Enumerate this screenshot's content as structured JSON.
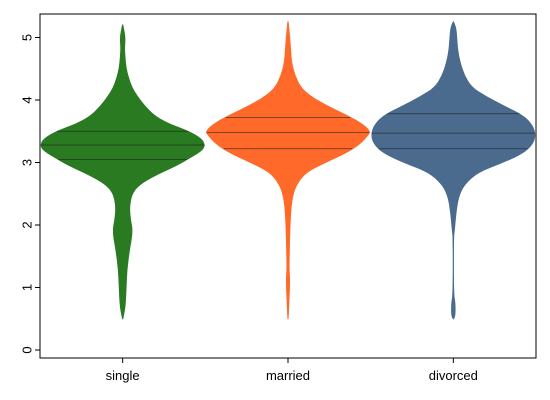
{
  "chart_data": {
    "type": "violin",
    "title": "",
    "xlabel": "",
    "ylabel": "",
    "ylim": [
      0,
      5.3
    ],
    "yticks": [
      0,
      1,
      2,
      3,
      4,
      5
    ],
    "categories": [
      "single",
      "married",
      "divorced"
    ],
    "grid": false,
    "legend": "none",
    "series": [
      {
        "category": "single",
        "color": "#2a7a22",
        "range": [
          0.5,
          5.2
        ],
        "quartiles": [
          3.05,
          3.28,
          3.5
        ],
        "density": [
          [
            0.5,
            0.0
          ],
          [
            0.7,
            0.03
          ],
          [
            1.0,
            0.04
          ],
          [
            1.3,
            0.05
          ],
          [
            1.6,
            0.08
          ],
          [
            1.9,
            0.12
          ],
          [
            2.1,
            0.09
          ],
          [
            2.3,
            0.08
          ],
          [
            2.5,
            0.11
          ],
          [
            2.65,
            0.2
          ],
          [
            2.8,
            0.4
          ],
          [
            2.95,
            0.65
          ],
          [
            3.1,
            0.85
          ],
          [
            3.2,
            0.97
          ],
          [
            3.28,
            1.0
          ],
          [
            3.38,
            0.96
          ],
          [
            3.5,
            0.8
          ],
          [
            3.62,
            0.55
          ],
          [
            3.75,
            0.38
          ],
          [
            3.9,
            0.27
          ],
          [
            4.05,
            0.18
          ],
          [
            4.2,
            0.11
          ],
          [
            4.35,
            0.07
          ],
          [
            4.5,
            0.04
          ],
          [
            4.7,
            0.025
          ],
          [
            4.85,
            0.02
          ],
          [
            5.0,
            0.03
          ],
          [
            5.2,
            0.0
          ]
        ]
      },
      {
        "category": "married",
        "color": "#ff6a2a",
        "range": [
          0.5,
          5.25
        ],
        "quartiles": [
          3.22,
          3.48,
          3.72
        ],
        "density": [
          [
            0.5,
            0.0
          ],
          [
            0.8,
            0.01
          ],
          [
            1.1,
            0.02
          ],
          [
            1.3,
            0.01
          ],
          [
            1.6,
            0.015
          ],
          [
            1.9,
            0.02
          ],
          [
            2.2,
            0.03
          ],
          [
            2.45,
            0.05
          ],
          [
            2.65,
            0.1
          ],
          [
            2.85,
            0.22
          ],
          [
            3.0,
            0.45
          ],
          [
            3.15,
            0.7
          ],
          [
            3.3,
            0.88
          ],
          [
            3.45,
            0.98
          ],
          [
            3.5,
            1.0
          ],
          [
            3.62,
            0.9
          ],
          [
            3.75,
            0.72
          ],
          [
            3.9,
            0.48
          ],
          [
            4.05,
            0.28
          ],
          [
            4.2,
            0.15
          ],
          [
            4.4,
            0.08
          ],
          [
            4.6,
            0.04
          ],
          [
            4.8,
            0.03
          ],
          [
            5.0,
            0.02
          ],
          [
            5.25,
            0.0
          ]
        ]
      },
      {
        "category": "divorced",
        "color": "#4a6a8e",
        "range": [
          0.5,
          5.25
        ],
        "quartiles": [
          3.22,
          3.47,
          3.78
        ],
        "density": [
          [
            0.5,
            0.0
          ],
          [
            0.55,
            0.02
          ],
          [
            0.75,
            0.02
          ],
          [
            0.9,
            0.0
          ],
          [
            1.8,
            0.0
          ],
          [
            1.9,
            0.01
          ],
          [
            2.2,
            0.03
          ],
          [
            2.45,
            0.06
          ],
          [
            2.65,
            0.13
          ],
          [
            2.85,
            0.3
          ],
          [
            3.0,
            0.6
          ],
          [
            3.15,
            0.85
          ],
          [
            3.3,
            0.97
          ],
          [
            3.45,
            1.0
          ],
          [
            3.6,
            0.96
          ],
          [
            3.75,
            0.85
          ],
          [
            3.9,
            0.62
          ],
          [
            4.05,
            0.4
          ],
          [
            4.2,
            0.22
          ],
          [
            4.4,
            0.13
          ],
          [
            4.6,
            0.08
          ],
          [
            4.8,
            0.05
          ],
          [
            5.0,
            0.04
          ],
          [
            5.15,
            0.03
          ],
          [
            5.25,
            0.0
          ]
        ]
      }
    ]
  }
}
